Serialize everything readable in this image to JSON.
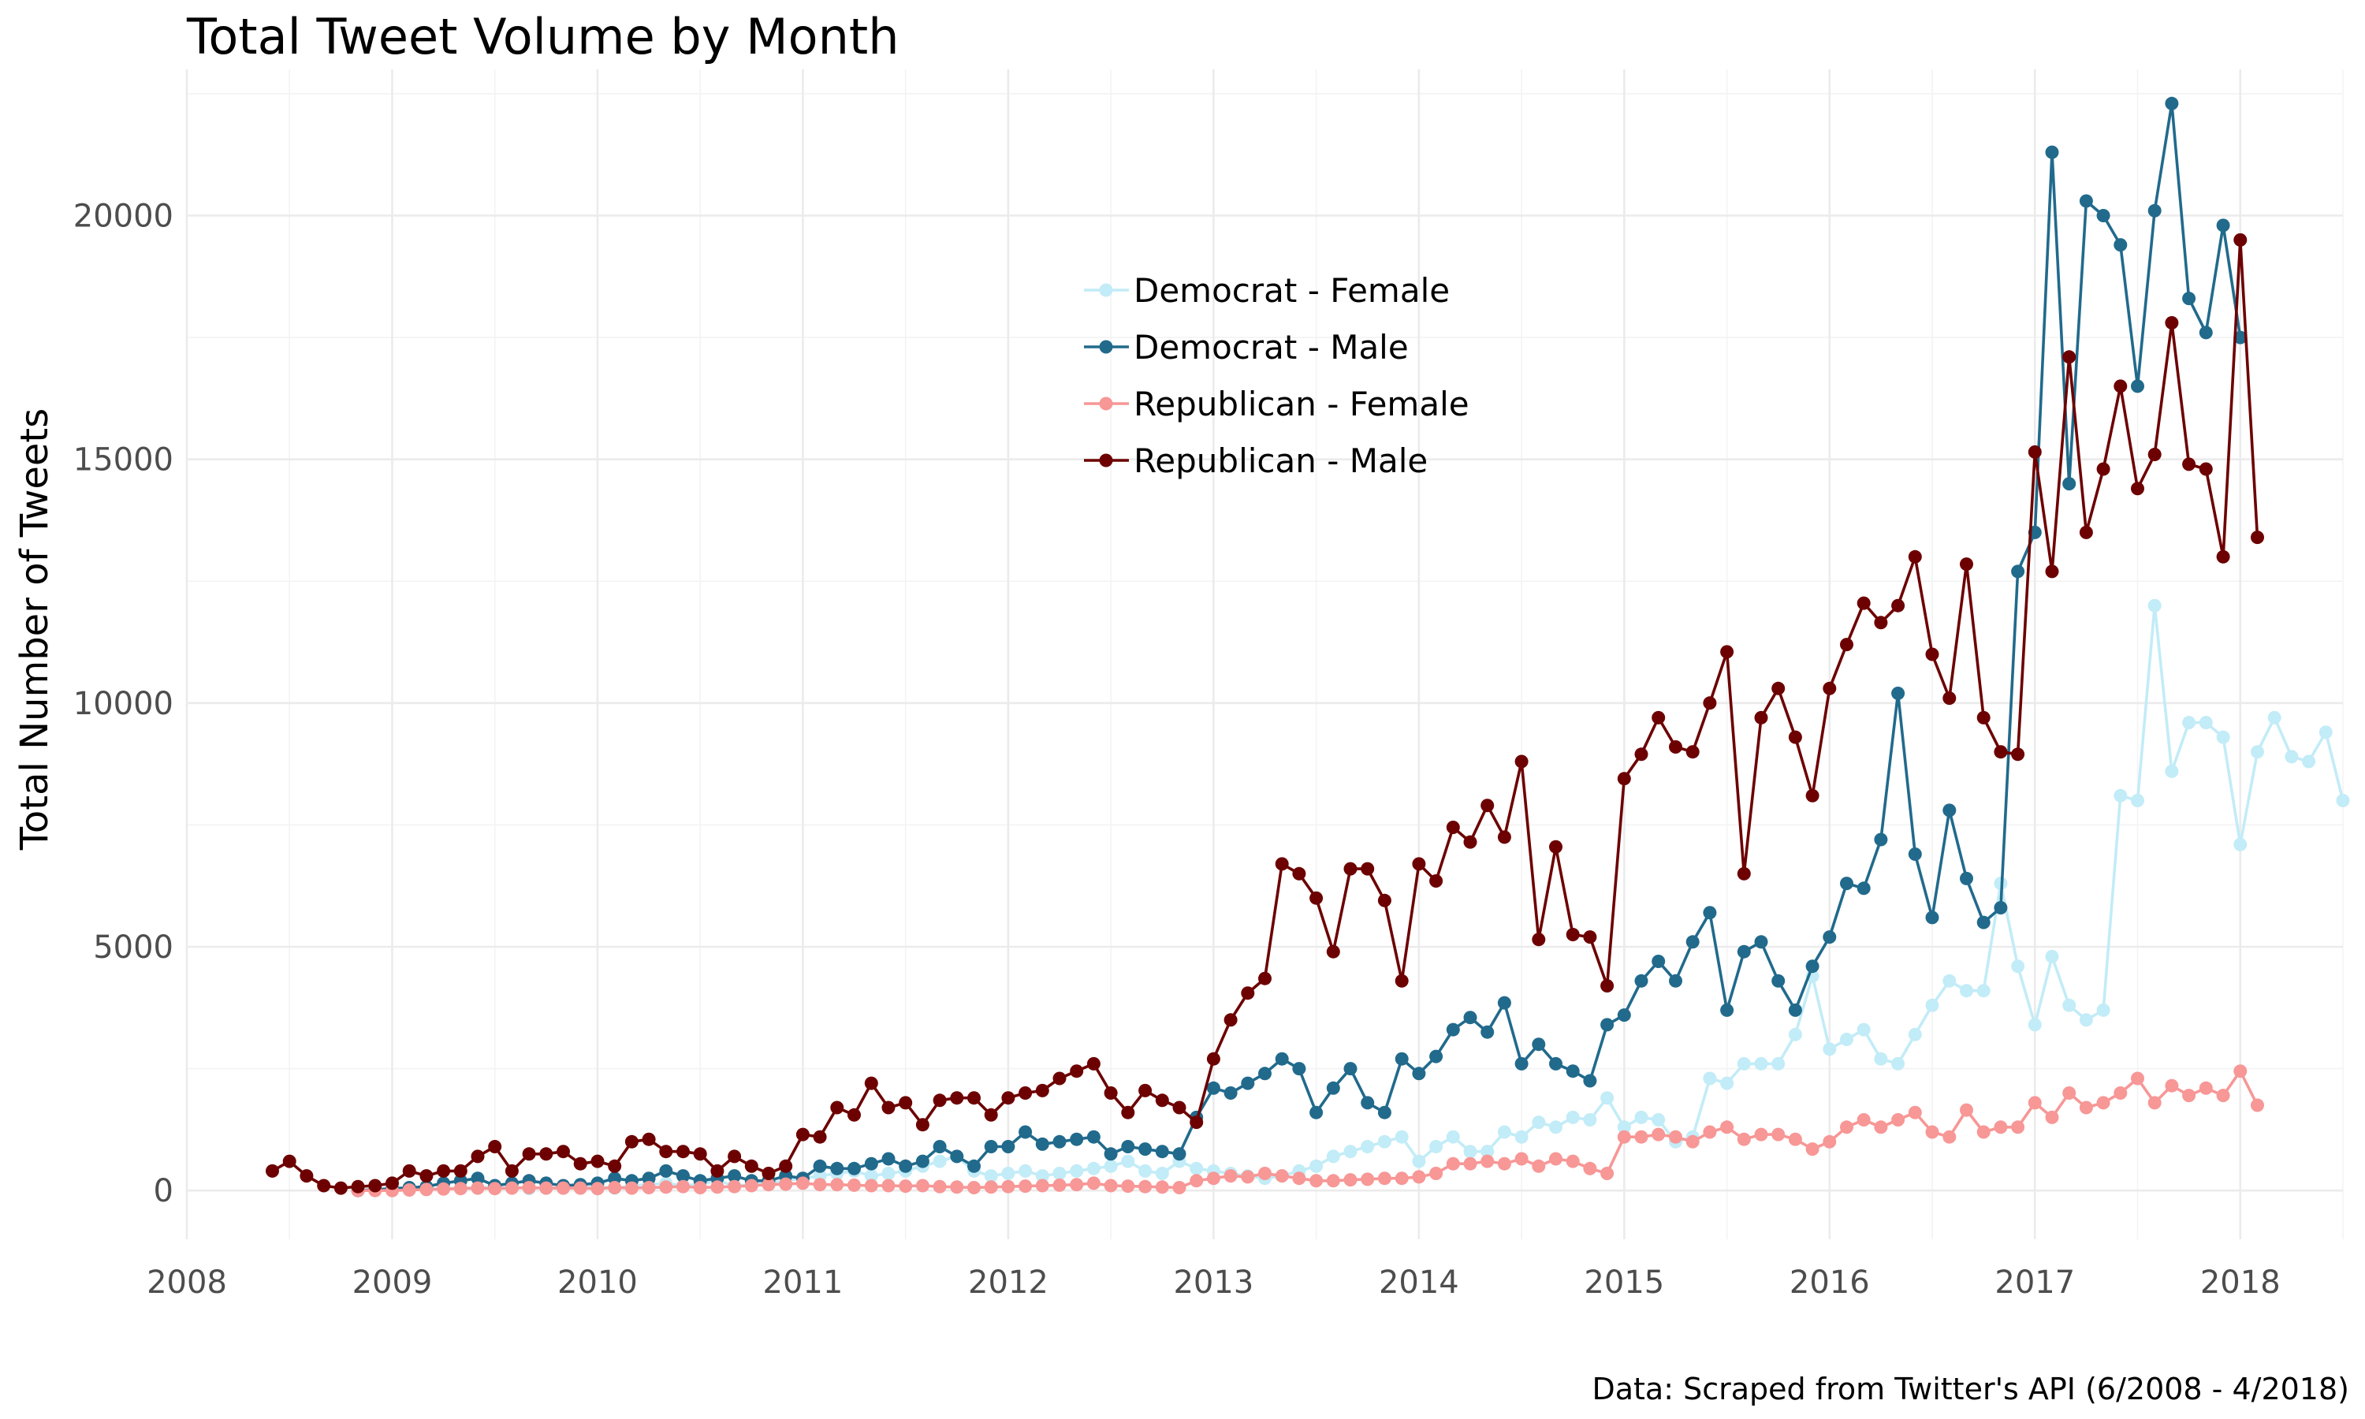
{
  "chart_data": {
    "type": "line",
    "title": "Total Tweet Volume by Month",
    "xlabel": "",
    "ylabel": "Total Number of Tweets",
    "caption": "Data: Scraped from Twitter's API (6/2008 - 4/2018)",
    "xlim": [
      "2008-01",
      "2018-07"
    ],
    "ylim": [
      -1000,
      23000
    ],
    "x_ticks": [
      "2008",
      "2009",
      "2010",
      "2011",
      "2012",
      "2013",
      "2014",
      "2015",
      "2016",
      "2017",
      "2018"
    ],
    "y_ticks": [
      "0",
      "5000",
      "10000",
      "15000",
      "20000"
    ],
    "grid": true,
    "legend_position": "top-center",
    "series": [
      {
        "name": "Democrat - Female",
        "color": "#c2ecf7",
        "start": "2008-11",
        "values": [
          0,
          0,
          10,
          20,
          30,
          40,
          50,
          60,
          70,
          80,
          40,
          60,
          50,
          60,
          80,
          50,
          100,
          120,
          150,
          100,
          130,
          200,
          100,
          120,
          150,
          200,
          250,
          300,
          350,
          400,
          300,
          350,
          400,
          500,
          600,
          700,
          400,
          300,
          350,
          400,
          300,
          350,
          400,
          450,
          500,
          600,
          400,
          350,
          600,
          450,
          400,
          350,
          300,
          250,
          300,
          400,
          500,
          700,
          800,
          900,
          1000,
          1100,
          600,
          900,
          1100,
          800,
          800,
          1200,
          1100,
          1400,
          1300,
          1500,
          1450,
          1900,
          1300,
          1500,
          1450,
          1000,
          1100,
          2300,
          2200,
          2600,
          2600,
          2600,
          3200,
          4400,
          2900,
          3100,
          3300,
          2700,
          2600,
          3200,
          3800,
          4300,
          4100,
          4100,
          6300,
          4600,
          3400,
          4800,
          3800,
          3500,
          3700,
          8100,
          8000,
          12000,
          8600,
          9600,
          9600,
          9300,
          7100,
          9000,
          9700,
          8900,
          8800,
          9400,
          8000
        ]
      },
      {
        "name": "Democrat - Male",
        "color": "#216a8c",
        "start": "2008-11",
        "values": [
          0,
          20,
          40,
          60,
          80,
          150,
          200,
          250,
          100,
          150,
          200,
          150,
          100,
          120,
          150,
          250,
          200,
          250,
          400,
          300,
          200,
          250,
          300,
          200,
          200,
          300,
          250,
          500,
          450,
          450,
          550,
          650,
          500,
          600,
          900,
          700,
          500,
          900,
          900,
          1200,
          950,
          1000,
          1050,
          1100,
          750,
          900,
          850,
          800,
          750,
          1500,
          2100,
          2000,
          2200,
          2400,
          2700,
          2500,
          1600,
          2100,
          2500,
          1800,
          1600,
          2700,
          2400,
          2750,
          3300,
          3550,
          3250,
          3850,
          2600,
          3000,
          2600,
          2450,
          2250,
          3400,
          3600,
          4300,
          4700,
          4300,
          5100,
          5700,
          3700,
          4900,
          5100,
          4300,
          3700,
          4600,
          5200,
          6300,
          6200,
          7200,
          10200,
          6900,
          5600,
          7800,
          6400,
          5500,
          5800,
          12700,
          13500,
          21300,
          14500,
          20300,
          20000,
          19400,
          16500,
          20100,
          22300,
          18300,
          17600,
          19800,
          17500
        ]
      },
      {
        "name": "Republican - Female",
        "color": "#f79796",
        "start": "2008-11",
        "values": [
          0,
          0,
          0,
          10,
          20,
          30,
          40,
          50,
          40,
          50,
          60,
          50,
          50,
          50,
          40,
          60,
          50,
          60,
          70,
          80,
          60,
          70,
          80,
          100,
          120,
          130,
          150,
          120,
          120,
          110,
          100,
          100,
          90,
          100,
          80,
          70,
          60,
          70,
          80,
          90,
          100,
          110,
          120,
          150,
          100,
          90,
          80,
          70,
          60,
          200,
          250,
          300,
          280,
          350,
          300,
          250,
          200,
          200,
          220,
          230,
          250,
          250,
          280,
          350,
          550,
          550,
          600,
          550,
          650,
          500,
          650,
          600,
          450,
          350,
          1100,
          1100,
          1150,
          1100,
          1000,
          1200,
          1300,
          1050,
          1150,
          1150,
          1050,
          850,
          1000,
          1300,
          1450,
          1300,
          1450,
          1600,
          1200,
          1100,
          1650,
          1200,
          1300,
          1300,
          1800,
          1500,
          2000,
          1700,
          1800,
          2000,
          2300,
          1800,
          2150,
          1950,
          2100,
          1950,
          2450,
          1750
        ]
      },
      {
        "name": "Republican - Male",
        "color": "#6d0000",
        "start": "2008-06",
        "values": [
          400,
          600,
          300,
          100,
          50,
          80,
          100,
          150,
          400,
          300,
          400,
          400,
          700,
          900,
          400,
          750,
          750,
          800,
          550,
          600,
          500,
          1000,
          1050,
          800,
          800,
          750,
          400,
          700,
          500,
          350,
          500,
          1150,
          1100,
          1700,
          1550,
          2200,
          1700,
          1800,
          1350,
          1850,
          1900,
          1900,
          1550,
          1900,
          2000,
          2050,
          2300,
          2450,
          2600,
          2000,
          1600,
          2050,
          1850,
          1700,
          1400,
          2700,
          3500,
          4050,
          4350,
          6700,
          6500,
          6000,
          4900,
          6600,
          6600,
          5950,
          4300,
          6700,
          6350,
          7450,
          7150,
          7900,
          7250,
          8800,
          5150,
          7050,
          5250,
          5200,
          4200,
          8450,
          8950,
          9700,
          9100,
          9000,
          10000,
          11050,
          6500,
          9700,
          10300,
          9300,
          8100,
          10300,
          11200,
          12050,
          11650,
          12000,
          13000,
          11000,
          10100,
          12850,
          9700,
          9000,
          8950,
          15150,
          12700,
          17100,
          13500,
          14800,
          16500,
          14400,
          15100,
          17800,
          14900,
          14800,
          13000,
          19500,
          13400
        ]
      }
    ]
  }
}
